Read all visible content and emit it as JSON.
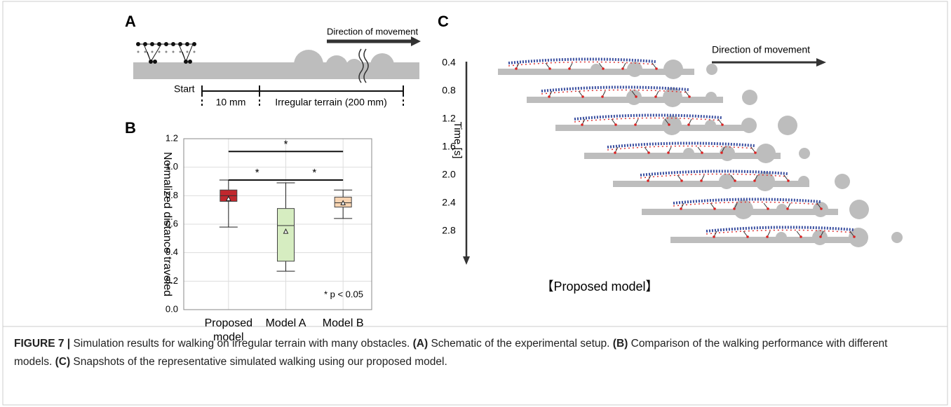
{
  "panel_a": {
    "label": "A",
    "direction": "Direction of movement",
    "start": "Start",
    "gap": "10 mm",
    "terrain": "Irregular terrain (200 mm)"
  },
  "chart_data": {
    "type": "box",
    "label": "B",
    "ylabel": "Normalized distance traveled",
    "annotation": "* p < 0.05",
    "categories": [
      "Proposed model",
      "Model A",
      "Model B"
    ],
    "low": [
      0.58,
      0.27,
      0.64
    ],
    "q1": [
      0.76,
      0.34,
      0.72
    ],
    "median": [
      0.8,
      0.59,
      0.75
    ],
    "q3": [
      0.84,
      0.71,
      0.79
    ],
    "high": [
      0.91,
      0.89,
      0.84
    ],
    "mean": [
      0.78,
      0.55,
      0.75
    ],
    "colors": [
      "#c1272d",
      "#d6edc1",
      "#f8d4b2"
    ],
    "ylim": [
      0,
      1.2
    ],
    "yticks": [
      {
        "value": 0,
        "label": "0.0"
      },
      0.2,
      0.4,
      0.6,
      0.8,
      {
        "value": 1,
        "label": "1.0"
      },
      1.2
    ],
    "grid": true,
    "brackets": [
      {
        "y": 1.11,
        "label": "*"
      },
      {
        "y": 0.91,
        "label": "*"
      },
      {
        "y": 0.91,
        "label": "*"
      }
    ]
  },
  "panel_c": {
    "label": "C",
    "direction": "Direction of movement",
    "axis_label": "Time [s]",
    "times": [
      "0.4",
      "0.8",
      "1.2",
      "1.6",
      "2.0",
      "2.4",
      "2.8"
    ],
    "caption": "【Proposed model】"
  },
  "caption": [
    {
      "text": "FIGURE 7 |",
      "bold": true
    },
    {
      "text": " Simulation results for walking on irregular terrain with many obstacles. "
    },
    {
      "text": "(A)",
      "bold": true
    },
    {
      "text": " Schematic of the experimental setup. "
    },
    {
      "text": "(B)",
      "bold": true
    },
    {
      "text": " Comparison of the walking performance with different models. "
    },
    {
      "text": "(C)",
      "bold": true
    },
    {
      "text": " Snapshots of the representative simulated walking using our proposed model."
    }
  ]
}
